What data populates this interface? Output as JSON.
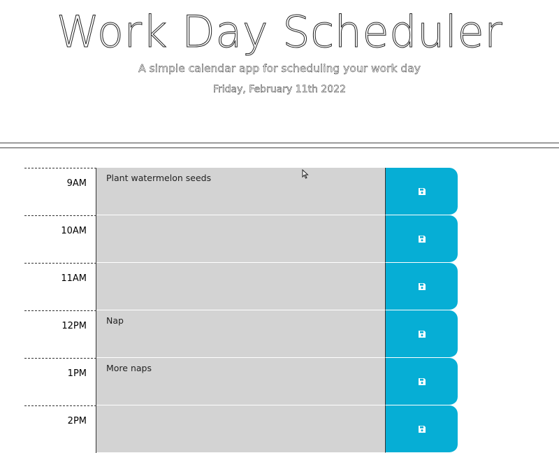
{
  "header": {
    "title": "Work Day Scheduler",
    "subtitle": "A simple calendar app for scheduling your work day",
    "current_day": "Friday, February 11th 2022"
  },
  "timeblocks": [
    {
      "hour": "9AM",
      "text": "Plant watermelon seeds",
      "save_icon": "floppy-disk-icon"
    },
    {
      "hour": "10AM",
      "text": "",
      "save_icon": "floppy-disk-icon"
    },
    {
      "hour": "11AM",
      "text": "",
      "save_icon": "floppy-disk-icon"
    },
    {
      "hour": "12PM",
      "text": "Nap",
      "save_icon": "floppy-disk-icon"
    },
    {
      "hour": "1PM",
      "text": "More naps",
      "save_icon": "floppy-disk-icon"
    },
    {
      "hour": "2PM",
      "text": "",
      "save_icon": "floppy-disk-icon"
    }
  ],
  "colors": {
    "save_button": "#06aed5",
    "description_bg": "#d3d3d3"
  }
}
